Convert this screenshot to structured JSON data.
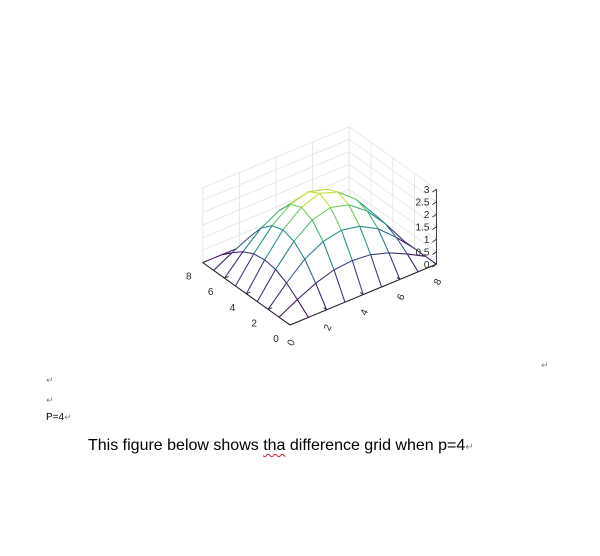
{
  "document": {
    "paragraph_mark": "↵",
    "p_label": "P=4",
    "caption": {
      "before": "This figure below shows ",
      "misspelled": "tha",
      "after": " difference grid when p=4"
    }
  },
  "chart_data": {
    "type": "surface",
    "title": "",
    "x": [
      0,
      1,
      2,
      3,
      4,
      5,
      6,
      7,
      8
    ],
    "y": [
      0,
      1,
      2,
      3,
      4,
      5,
      6,
      7,
      8
    ],
    "z": [
      [
        0.0,
        0.0,
        0.0,
        0.0,
        0.0,
        0.0,
        0.0,
        0.0,
        0.0
      ],
      [
        0.0,
        0.4,
        0.75,
        0.98,
        1.05,
        0.98,
        0.75,
        0.4,
        0.0
      ],
      [
        0.0,
        0.75,
        1.4,
        1.8,
        1.95,
        1.8,
        1.4,
        0.75,
        0.0
      ],
      [
        0.0,
        0.98,
        1.8,
        2.35,
        2.55,
        2.35,
        1.8,
        0.98,
        0.0
      ],
      [
        0.0,
        1.05,
        1.95,
        2.55,
        2.8,
        2.55,
        1.95,
        1.05,
        0.0
      ],
      [
        0.0,
        0.98,
        1.8,
        2.35,
        2.55,
        2.35,
        1.8,
        0.98,
        0.0
      ],
      [
        0.0,
        0.75,
        1.4,
        1.8,
        1.95,
        1.8,
        1.4,
        0.75,
        0.0
      ],
      [
        0.0,
        0.4,
        0.75,
        0.98,
        1.05,
        0.98,
        0.75,
        0.4,
        0.0
      ],
      [
        0.0,
        0.0,
        0.0,
        0.0,
        0.0,
        0.0,
        0.0,
        0.0,
        0.0
      ]
    ],
    "x_ticks": [
      "0",
      "2",
      "4",
      "6",
      "8"
    ],
    "y_ticks": [
      "0",
      "2",
      "4",
      "6",
      "8"
    ],
    "z_ticks": [
      "0",
      "0.5",
      "1",
      "1.5",
      "2",
      "2.5",
      "3"
    ],
    "xlim": [
      0,
      8
    ],
    "ylim": [
      0,
      8
    ],
    "zlim": [
      0,
      3
    ],
    "grid": true,
    "colormap": [
      "#440154",
      "#3b528b",
      "#21908d",
      "#5dc963",
      "#fde725"
    ]
  }
}
